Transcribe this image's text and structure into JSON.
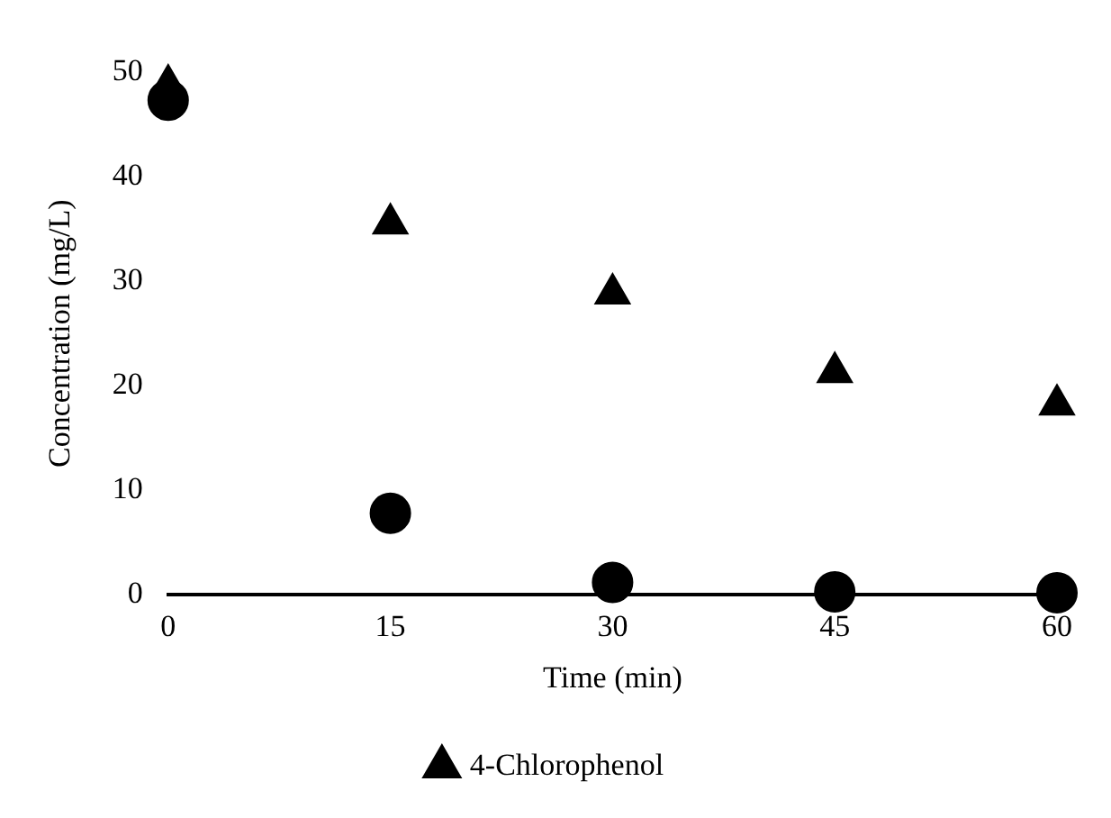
{
  "chart_data": {
    "type": "scatter",
    "xlabel": "Time (min)",
    "ylabel": "Concentration (mg/L)",
    "x": [
      0,
      15,
      30,
      45,
      60
    ],
    "series": [
      {
        "color": "#000000",
        "marker": "circle",
        "values": [
          47.3,
          7.8,
          1.2,
          0.3,
          0.2
        ]
      },
      {
        "name": "4-Chlorophenol",
        "color": "#000000",
        "marker": "triangle",
        "values": [
          48.8,
          35.5,
          28.8,
          21.3,
          18.2
        ]
      }
    ],
    "xlim": [
      0,
      60
    ],
    "xticks": [
      0,
      15,
      30,
      45,
      60
    ],
    "ylim": [
      0,
      50
    ],
    "yticks": [
      0,
      10,
      20,
      30,
      40,
      50
    ],
    "grid": false,
    "legend": "bottom"
  }
}
